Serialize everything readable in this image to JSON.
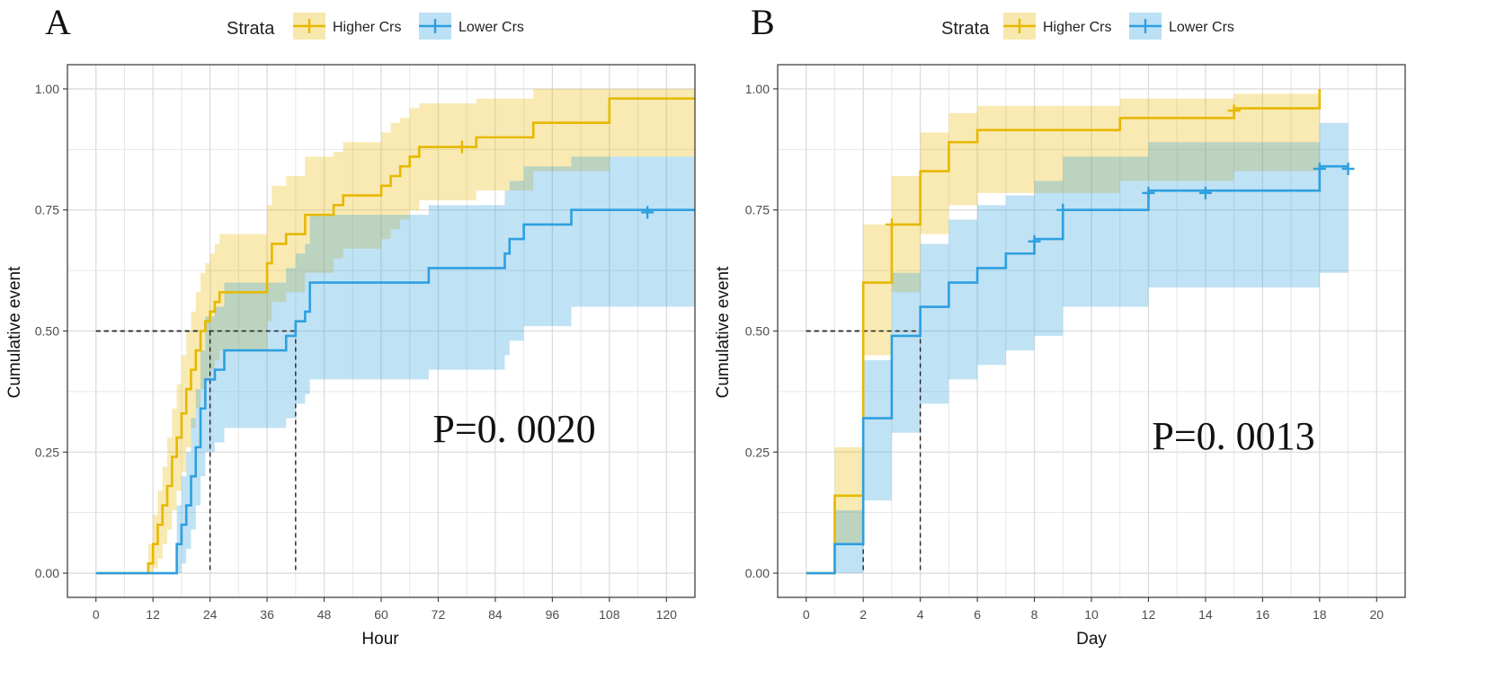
{
  "colors": {
    "higher": "#E7B800",
    "lower": "#2E9FDF",
    "grid": "#e6e6e6",
    "frame": "#333333",
    "ref": "#222222"
  },
  "chart_data": [
    {
      "type": "line",
      "subtype": "cumulative-event-step",
      "panel_label": "A",
      "legend": {
        "title": "Strata",
        "entries": [
          "Higher Crs",
          "Lower Crs"
        ],
        "position": "top"
      },
      "xlabel": "Hour",
      "ylabel": "Cumulative event",
      "xlim": [
        -6,
        126
      ],
      "ylim": [
        -0.05,
        1.05
      ],
      "xticks": [
        0,
        12,
        24,
        36,
        48,
        60,
        72,
        84,
        96,
        108,
        120
      ],
      "yticks": [
        0,
        0.25,
        0.5,
        0.75,
        1
      ],
      "ytick_labels": [
        "0.00",
        "0.25",
        "0.50",
        "0.75",
        "1.00"
      ],
      "annotation": "P=0. 0020",
      "reference_lines": [
        {
          "y": 0.5,
          "x": 24
        },
        {
          "y": 0.5,
          "x": 42
        }
      ],
      "series": [
        {
          "name": "Higher Crs",
          "x": [
            0,
            11,
            12,
            13,
            14,
            15,
            16,
            17,
            18,
            19,
            20,
            21,
            22,
            23,
            24,
            25,
            26,
            30,
            34,
            36,
            37,
            40,
            44,
            46,
            50,
            52,
            56,
            60,
            62,
            64,
            66,
            68,
            70,
            72,
            80,
            92,
            108,
            126
          ],
          "y": [
            0,
            0.02,
            0.06,
            0.1,
            0.14,
            0.18,
            0.24,
            0.28,
            0.33,
            0.38,
            0.42,
            0.46,
            0.5,
            0.52,
            0.54,
            0.56,
            0.58,
            0.58,
            0.58,
            0.64,
            0.68,
            0.7,
            0.74,
            0.74,
            0.76,
            0.78,
            0.78,
            0.8,
            0.82,
            0.84,
            0.86,
            0.88,
            0.88,
            0.88,
            0.9,
            0.93,
            0.98,
            0.98
          ],
          "lower": [
            0,
            0,
            0.01,
            0.03,
            0.06,
            0.09,
            0.13,
            0.17,
            0.21,
            0.26,
            0.3,
            0.34,
            0.38,
            0.4,
            0.42,
            0.44,
            0.46,
            0.46,
            0.46,
            0.52,
            0.56,
            0.58,
            0.62,
            0.62,
            0.65,
            0.67,
            0.67,
            0.69,
            0.71,
            0.73,
            0.75,
            0.77,
            0.77,
            0.77,
            0.79,
            0.83,
            0.86,
            0.86
          ],
          "upper": [
            0,
            0.06,
            0.12,
            0.17,
            0.22,
            0.28,
            0.34,
            0.39,
            0.45,
            0.5,
            0.54,
            0.58,
            0.62,
            0.64,
            0.66,
            0.68,
            0.7,
            0.7,
            0.7,
            0.76,
            0.8,
            0.82,
            0.86,
            0.86,
            0.87,
            0.89,
            0.89,
            0.91,
            0.93,
            0.94,
            0.96,
            0.97,
            0.97,
            0.97,
            0.98,
            1.0,
            1.0,
            1.0
          ],
          "censor": [
            [
              77,
              0.88
            ]
          ]
        },
        {
          "name": "Lower Crs",
          "x": [
            0,
            17,
            18,
            19,
            20,
            21,
            22,
            23,
            25,
            27,
            36,
            40,
            42,
            44,
            45,
            70,
            86,
            87,
            90,
            100,
            126
          ],
          "y": [
            0,
            0.06,
            0.1,
            0.14,
            0.2,
            0.26,
            0.34,
            0.4,
            0.42,
            0.46,
            0.46,
            0.49,
            0.52,
            0.54,
            0.6,
            0.63,
            0.66,
            0.69,
            0.72,
            0.75,
            0.75
          ],
          "lower": [
            0,
            0,
            0.02,
            0.05,
            0.09,
            0.14,
            0.2,
            0.25,
            0.27,
            0.3,
            0.3,
            0.32,
            0.35,
            0.37,
            0.4,
            0.42,
            0.45,
            0.48,
            0.51,
            0.55,
            0.55
          ],
          "upper": [
            0,
            0.14,
            0.2,
            0.25,
            0.32,
            0.38,
            0.46,
            0.53,
            0.55,
            0.6,
            0.6,
            0.63,
            0.66,
            0.68,
            0.74,
            0.76,
            0.79,
            0.81,
            0.84,
            0.86,
            0.86
          ],
          "censor": [
            [
              116,
              0.745
            ]
          ]
        }
      ]
    },
    {
      "type": "line",
      "subtype": "cumulative-event-step",
      "panel_label": "B",
      "legend": {
        "title": "Strata",
        "entries": [
          "Higher Crs",
          "Lower Crs"
        ],
        "position": "top"
      },
      "xlabel": "Day",
      "ylabel": "Cumulative event",
      "xlim": [
        -1,
        21
      ],
      "ylim": [
        -0.05,
        1.05
      ],
      "xticks": [
        0,
        2,
        4,
        6,
        8,
        10,
        12,
        14,
        16,
        18,
        20
      ],
      "yticks": [
        0,
        0.25,
        0.5,
        0.75,
        1
      ],
      "ytick_labels": [
        "0.00",
        "0.25",
        "0.50",
        "0.75",
        "1.00"
      ],
      "annotation": "P=0. 0013",
      "reference_lines": [
        {
          "y": 0.5,
          "x": 2
        },
        {
          "y": 0.5,
          "x": 4
        }
      ],
      "series": [
        {
          "name": "Higher Crs",
          "x": [
            0,
            1,
            2,
            3,
            4,
            5,
            6,
            11,
            15,
            18
          ],
          "y": [
            0,
            0.16,
            0.6,
            0.72,
            0.83,
            0.89,
            0.915,
            0.94,
            0.96,
            0.96
          ],
          "lower": [
            0,
            0.06,
            0.45,
            0.58,
            0.7,
            0.76,
            0.785,
            0.81,
            0.83,
            0.83
          ],
          "upper": [
            0,
            0.26,
            0.72,
            0.82,
            0.91,
            0.95,
            0.965,
            0.98,
            0.99,
            0.99
          ],
          "end": [
            18,
            1.0
          ],
          "censor": [
            [
              3,
              0.72
            ],
            [
              15,
              0.955
            ]
          ]
        },
        {
          "name": "Lower Crs",
          "x": [
            0,
            1,
            2,
            3,
            4,
            5,
            6,
            7,
            8,
            9,
            12,
            18,
            19
          ],
          "y": [
            0,
            0.06,
            0.32,
            0.49,
            0.55,
            0.6,
            0.63,
            0.66,
            0.69,
            0.75,
            0.79,
            0.84,
            0.84
          ],
          "lower": [
            0,
            0,
            0.15,
            0.29,
            0.35,
            0.4,
            0.43,
            0.46,
            0.49,
            0.55,
            0.59,
            0.62,
            0.62
          ],
          "upper": [
            0,
            0.13,
            0.44,
            0.62,
            0.68,
            0.73,
            0.76,
            0.78,
            0.81,
            0.86,
            0.89,
            0.93,
            0.93
          ],
          "censor": [
            [
              8,
              0.685
            ],
            [
              9,
              0.75
            ],
            [
              12,
              0.785
            ],
            [
              14,
              0.785
            ],
            [
              18,
              0.835
            ],
            [
              19,
              0.835
            ]
          ]
        }
      ]
    }
  ]
}
